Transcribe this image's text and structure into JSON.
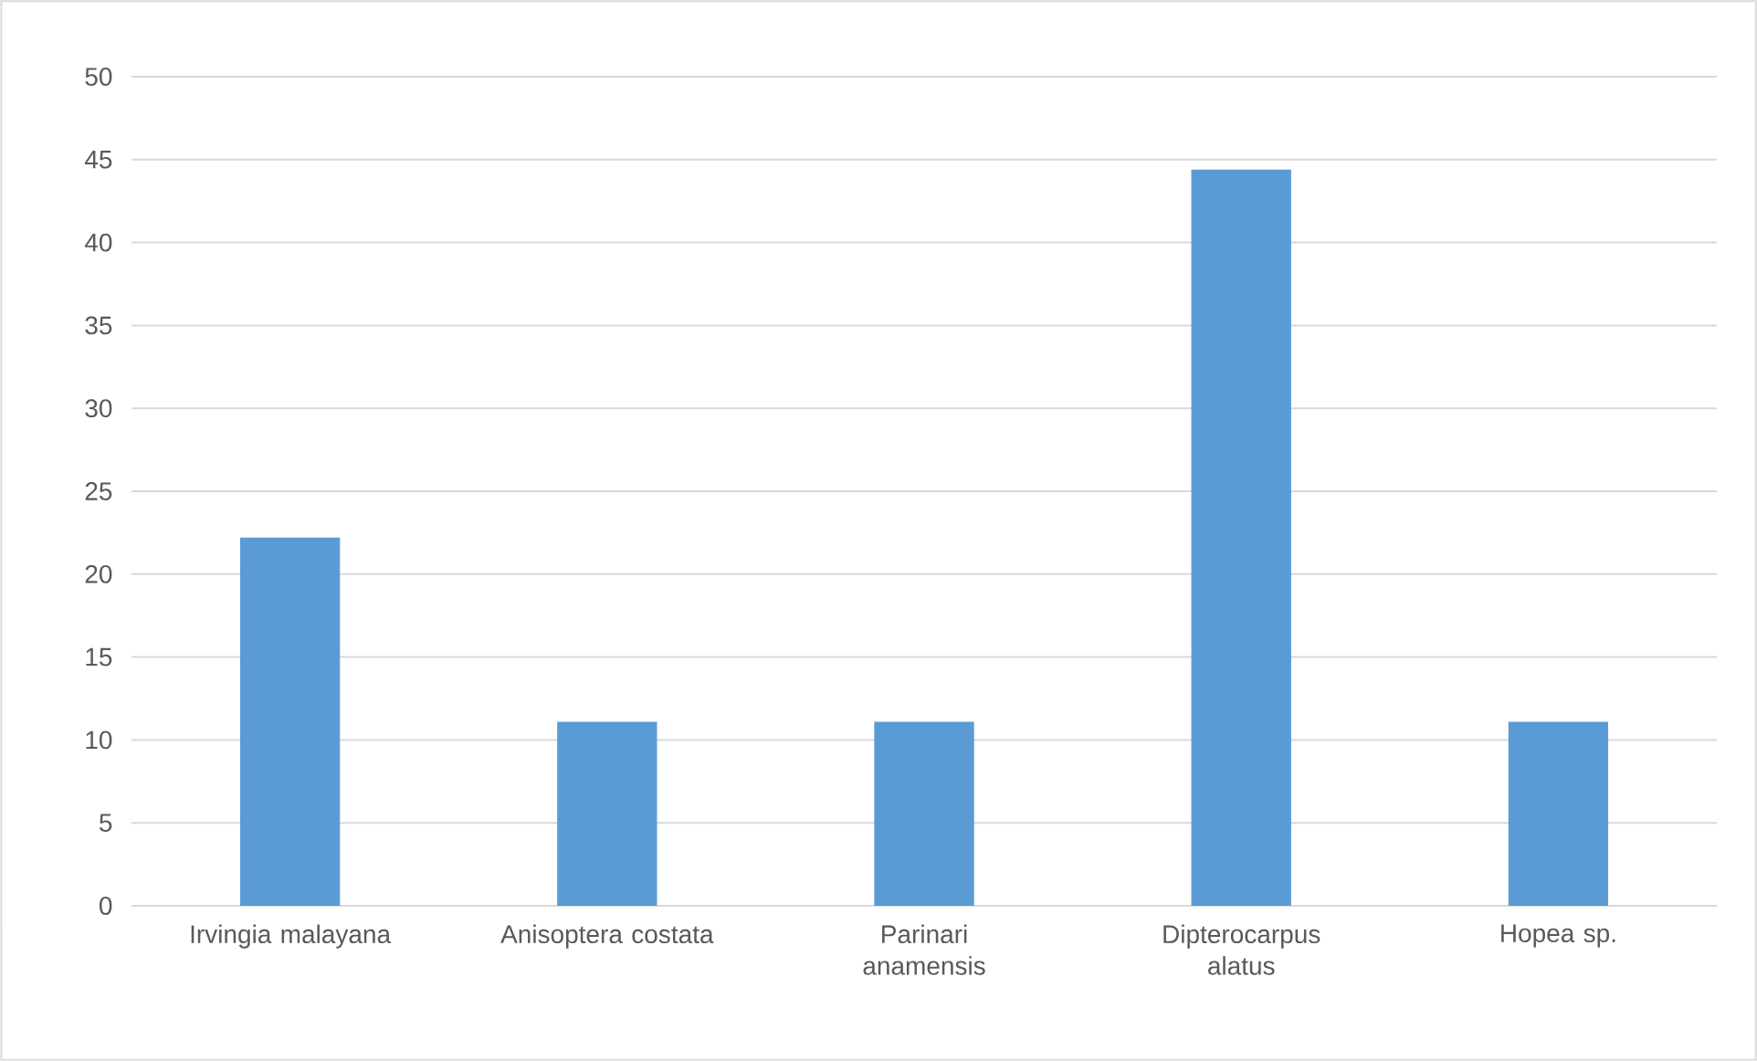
{
  "chart_data": {
    "type": "bar",
    "categories": [
      "Irvingia malayana",
      "Anisoptera costata",
      "Parinari anamensis",
      "Dipterocarpus alatus",
      "Hopea sp."
    ],
    "values": [
      22.2,
      11.1,
      11.1,
      44.4,
      11.1
    ],
    "color": "#5b9bd5",
    "ylim": [
      0,
      50
    ],
    "yticks": [
      0,
      5,
      10,
      15,
      20,
      25,
      30,
      35,
      40,
      45,
      50
    ],
    "grid": "y"
  }
}
